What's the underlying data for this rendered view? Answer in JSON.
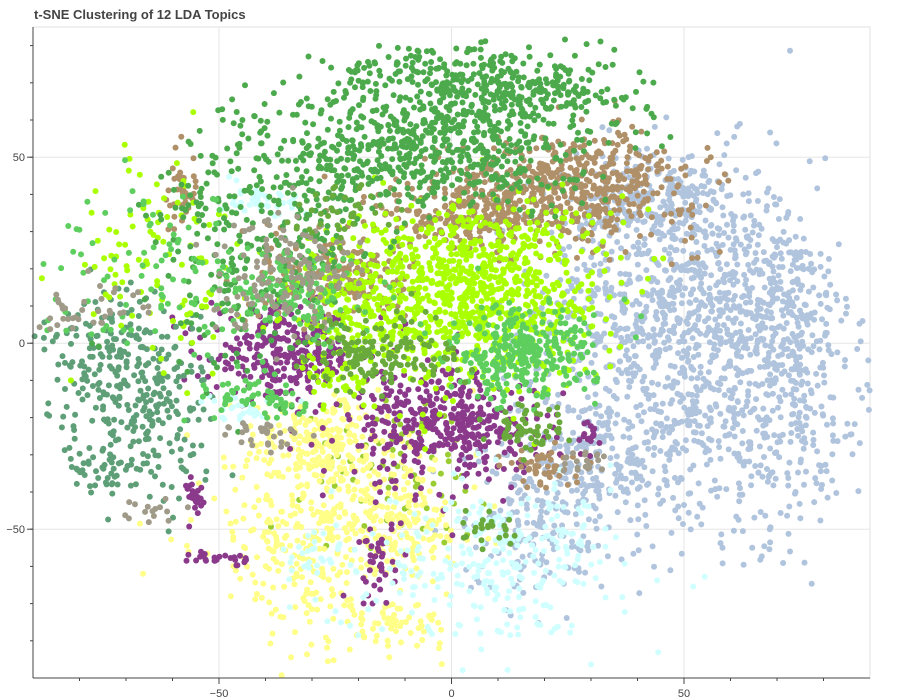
{
  "chart_data": {
    "type": "scatter",
    "title": "t-SNE Clustering of 12 LDA Topics",
    "xlabel": "",
    "ylabel": "",
    "xlim": [
      -90,
      90
    ],
    "ylim": [
      -90,
      85
    ],
    "x_ticks": [
      -50,
      0,
      50
    ],
    "x_tick_labels": [
      "−50",
      "0",
      "50"
    ],
    "y_ticks": [
      50,
      0,
      -50
    ],
    "y_tick_labels": [
      "50",
      "0",
      "−50"
    ],
    "grid": true,
    "legend": "none",
    "series": [
      {
        "color": "#b0c4de",
        "clusters": [
          [
            48,
            10,
            15,
            20,
            900
          ],
          [
            70,
            8,
            8,
            12,
            250
          ],
          [
            68,
            -22,
            12,
            16,
            320
          ],
          [
            32,
            -32,
            12,
            10,
            300
          ],
          [
            43,
            38,
            8,
            7,
            200
          ],
          [
            18,
            -52,
            8,
            8,
            120
          ]
        ]
      },
      {
        "color": "#9acd32",
        "clusters": [
          [
            -12,
            -32,
            10,
            10,
            80
          ]
        ]
      },
      {
        "color": "#ffff88",
        "clusters": [
          [
            -28,
            -28,
            9,
            7,
            250
          ],
          [
            -30,
            -50,
            12,
            7,
            200
          ],
          [
            -10,
            -48,
            8,
            8,
            140
          ],
          [
            -30,
            -68,
            8,
            8,
            80
          ],
          [
            -12,
            -76,
            6,
            3,
            60
          ]
        ]
      },
      {
        "color": "#8b3a8b",
        "clusters": [
          [
            -36,
            -3,
            8,
            6,
            280
          ],
          [
            -8,
            -20,
            8,
            9,
            220
          ],
          [
            5,
            -23,
            9,
            6,
            200
          ],
          [
            -55,
            -41,
            1,
            3,
            25
          ],
          [
            -50,
            -58,
            3,
            1,
            25
          ],
          [
            -16,
            -59,
            2,
            6,
            40
          ],
          [
            30,
            -25,
            1,
            2,
            15
          ]
        ]
      },
      {
        "color": "#5e9f78",
        "clusters": [
          [
            -72,
            -5,
            9,
            9,
            200
          ],
          [
            -65,
            -22,
            7,
            10,
            150
          ],
          [
            -75,
            -34,
            4,
            4,
            40
          ]
        ]
      },
      {
        "color": "#b09068",
        "clusters": [
          [
            25,
            42,
            14,
            7,
            550
          ],
          [
            -25,
            18,
            8,
            6,
            200
          ],
          [
            5,
            34,
            10,
            5,
            180
          ],
          [
            -58,
            42,
            2,
            6,
            40
          ],
          [
            20,
            -33,
            4,
            3,
            50
          ]
        ]
      },
      {
        "color": "#aaff00",
        "clusters": [
          [
            4,
            14,
            14,
            12,
            900
          ],
          [
            -22,
            10,
            8,
            8,
            120
          ],
          [
            -24,
            -10,
            4,
            3,
            40
          ],
          [
            -62,
            20,
            10,
            16,
            100
          ]
        ]
      },
      {
        "color": "#d0ffff",
        "clusters": [
          [
            -42,
            38,
            5,
            2,
            40
          ],
          [
            -45,
            -17,
            4,
            2,
            25
          ],
          [
            5,
            -62,
            15,
            10,
            200
          ],
          [
            18,
            -55,
            10,
            8,
            100
          ],
          [
            -30,
            -58,
            3,
            3,
            25
          ]
        ]
      },
      {
        "color": "#4caa4c",
        "clusters": [
          [
            0,
            52,
            14,
            8,
            450
          ],
          [
            13,
            68,
            14,
            5,
            320
          ],
          [
            -45,
            28,
            10,
            18,
            220
          ],
          [
            -18,
            58,
            10,
            10,
            120
          ],
          [
            -30,
            40,
            8,
            12,
            120
          ],
          [
            -5,
            75,
            10,
            3,
            60
          ]
        ]
      },
      {
        "color": "#5ecf5e",
        "clusters": [
          [
            15,
            -3,
            8,
            6,
            300
          ],
          [
            -35,
            12,
            10,
            6,
            150
          ],
          [
            -40,
            -15,
            6,
            3,
            60
          ],
          [
            -65,
            16,
            12,
            12,
            80
          ]
        ]
      },
      {
        "color": "#a09a88",
        "clusters": [
          [
            -35,
            20,
            8,
            8,
            150
          ],
          [
            -78,
            10,
            8,
            3,
            40
          ],
          [
            -40,
            -24,
            4,
            2,
            30
          ],
          [
            -65,
            -45,
            3,
            2,
            15
          ],
          [
            27,
            -32,
            3,
            2,
            20
          ]
        ]
      },
      {
        "color": "#6aaa3c",
        "clusters": [
          [
            -15,
            -3,
            8,
            5,
            150
          ],
          [
            17,
            -23,
            5,
            3,
            60
          ],
          [
            8,
            -50,
            3,
            3,
            25
          ],
          [
            -25,
            35,
            5,
            4,
            40
          ]
        ]
      }
    ]
  }
}
